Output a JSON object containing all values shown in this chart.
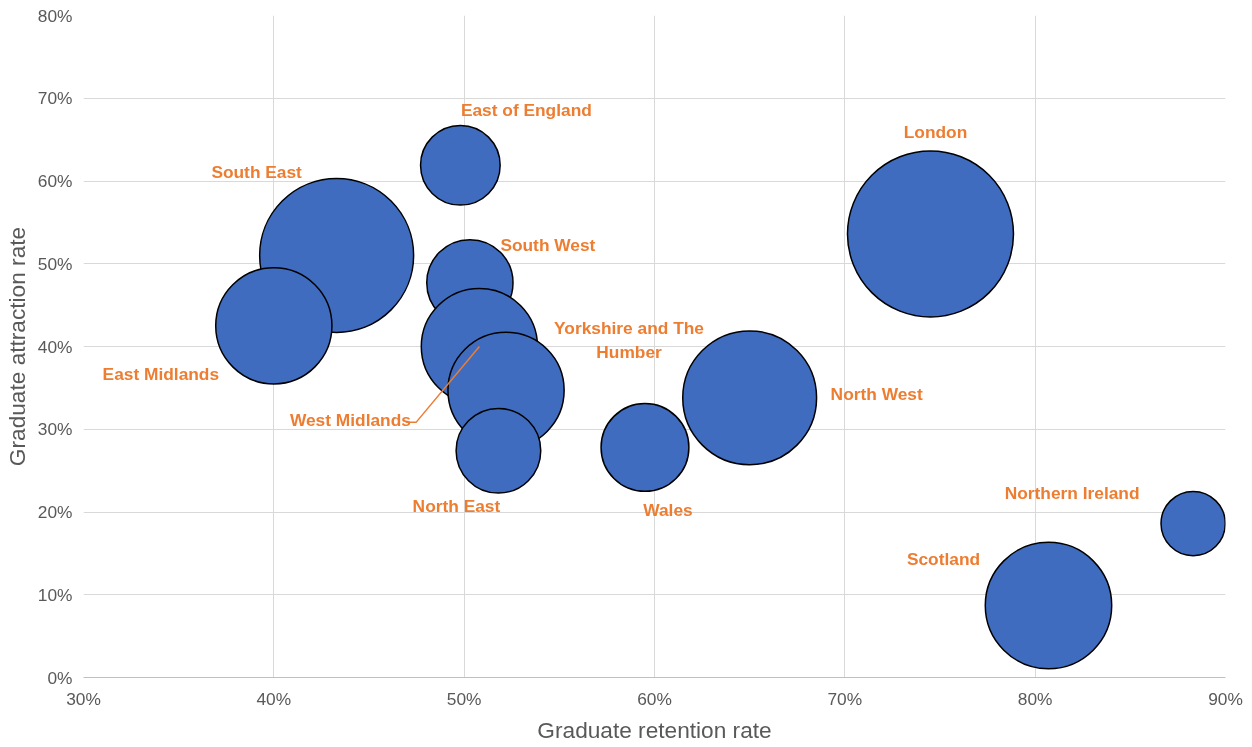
{
  "chart_data": {
    "type": "bubble",
    "xlabel": "Graduate retention rate",
    "ylabel": "Graduate attraction rate",
    "xlim": [
      30,
      90
    ],
    "ylim": [
      0,
      80
    ],
    "xticks": [
      {
        "value": 30,
        "label": "30%"
      },
      {
        "value": 40,
        "label": "40%"
      },
      {
        "value": 50,
        "label": "50%"
      },
      {
        "value": 60,
        "label": "60%"
      },
      {
        "value": 70,
        "label": "70%"
      },
      {
        "value": 80,
        "label": "80%"
      },
      {
        "value": 90,
        "label": "90%"
      }
    ],
    "yticks": [
      {
        "value": 0,
        "label": "0%"
      },
      {
        "value": 10,
        "label": "10%"
      },
      {
        "value": 20,
        "label": "20%"
      },
      {
        "value": 30,
        "label": "30%"
      },
      {
        "value": 40,
        "label": "40%"
      },
      {
        "value": 50,
        "label": "50%"
      },
      {
        "value": 60,
        "label": "60%"
      },
      {
        "value": 70,
        "label": "70%"
      },
      {
        "value": 80,
        "label": "80%"
      }
    ],
    "grid": true,
    "series": [
      {
        "name": "East of England",
        "color": "#3f6cbf",
        "x": [
          49.8
        ],
        "values": [
          61.9
        ],
        "sizes": [
          0.23
        ]
      },
      {
        "name": "South East",
        "color": "#3f6cbf",
        "x": [
          43.3
        ],
        "values": [
          51.0
        ],
        "sizes": [
          0.86
        ]
      },
      {
        "name": "East Midlands",
        "color": "#3f6cbf",
        "x": [
          40.0
        ],
        "values": [
          42.5
        ],
        "sizes": [
          0.49
        ]
      },
      {
        "name": "South West",
        "color": "#3f6cbf",
        "x": [
          50.3
        ],
        "values": [
          47.7
        ],
        "sizes": [
          0.27
        ]
      },
      {
        "name": "West Midlands",
        "color": "#3f6cbf",
        "x": [
          50.8
        ],
        "values": [
          40.0
        ],
        "sizes": [
          0.49
        ]
      },
      {
        "name": "Yorkshire and The\nHumber",
        "color": "#3f6cbf",
        "x": [
          52.2
        ],
        "values": [
          34.7
        ],
        "sizes": [
          0.49
        ]
      },
      {
        "name": "North East",
        "color": "#3f6cbf",
        "x": [
          51.8
        ],
        "values": [
          27.4
        ],
        "sizes": [
          0.26
        ]
      },
      {
        "name": "Wales",
        "color": "#3f6cbf",
        "x": [
          59.5
        ],
        "values": [
          27.8
        ],
        "sizes": [
          0.28
        ]
      },
      {
        "name": "North West",
        "color": "#3f6cbf",
        "x": [
          65.0
        ],
        "values": [
          33.8
        ],
        "sizes": [
          0.65
        ]
      },
      {
        "name": "London",
        "color": "#3f6cbf",
        "x": [
          74.5
        ],
        "values": [
          53.6
        ],
        "sizes": [
          1
        ]
      },
      {
        "name": "Scotland",
        "color": "#3f6cbf",
        "x": [
          80.7
        ],
        "values": [
          8.7
        ],
        "sizes": [
          0.58
        ]
      },
      {
        "name": "Northern Ireland",
        "color": "#3f6cbf",
        "x": [
          88.3
        ],
        "values": [
          18.6
        ],
        "sizes": [
          0.15
        ]
      }
    ]
  }
}
